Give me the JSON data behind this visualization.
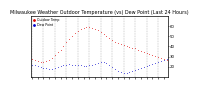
{
  "title": "Milwaukee Weather Outdoor Temperature (vs) Dew Point (Last 24 Hours)",
  "title_fontsize": 3.5,
  "bg_color": "#ffffff",
  "plot_bg_color": "#ffffff",
  "grid_color": "#888888",
  "temp_color": "#dd0000",
  "dew_color": "#0000cc",
  "legend_temp": "Outdoor Temp",
  "legend_dew": "Dew Point",
  "ylim": [
    10,
    70
  ],
  "yticks": [
    20,
    30,
    40,
    50,
    60
  ],
  "ytick_labels": [
    "20",
    "30",
    "40",
    "50",
    "60"
  ],
  "n_points": 48,
  "temp_values": [
    28,
    27,
    26,
    25,
    25,
    26,
    27,
    29,
    32,
    35,
    37,
    40,
    44,
    47,
    50,
    53,
    55,
    57,
    58,
    59,
    59,
    58,
    57,
    56,
    54,
    52,
    50,
    48,
    46,
    44,
    43,
    42,
    41,
    40,
    39,
    38,
    38,
    37,
    36,
    35,
    34,
    33,
    32,
    31,
    30,
    29,
    28,
    27
  ],
  "dew_values": [
    22,
    22,
    21,
    20,
    19,
    19,
    18,
    18,
    19,
    20,
    21,
    22,
    22,
    23,
    22,
    22,
    22,
    22,
    21,
    21,
    22,
    22,
    23,
    24,
    25,
    25,
    24,
    22,
    20,
    18,
    16,
    15,
    14,
    14,
    15,
    16,
    17,
    18,
    19,
    20,
    21,
    22,
    23,
    24,
    25,
    26,
    27,
    28
  ],
  "grid_positions": [
    0,
    4,
    8,
    12,
    16,
    20,
    24,
    28,
    32,
    36,
    40,
    44
  ]
}
